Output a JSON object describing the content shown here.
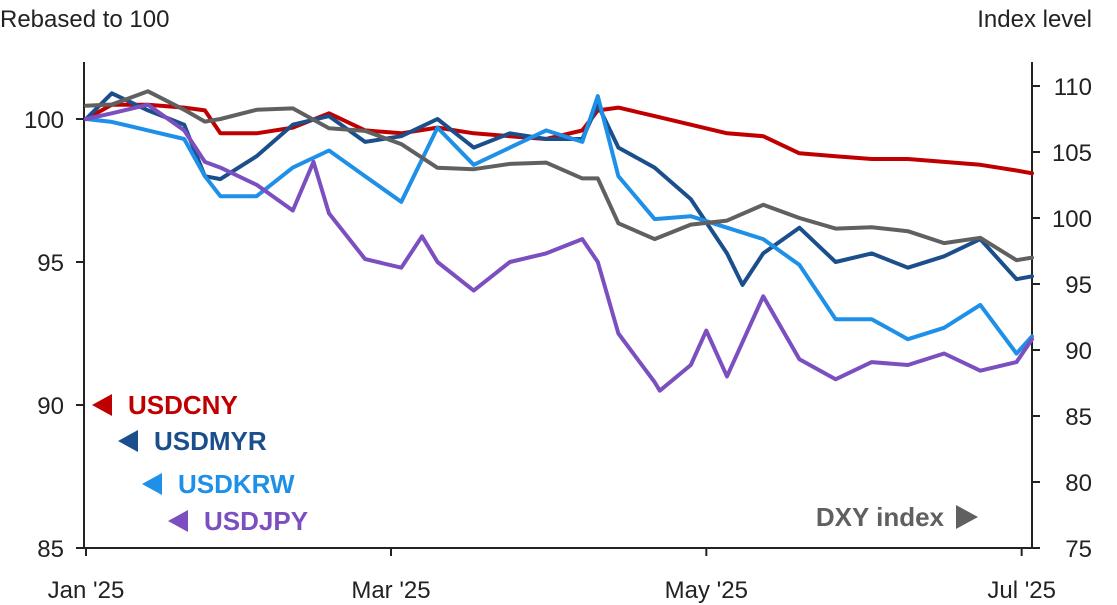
{
  "chart_data": {
    "type": "line",
    "left_axis_label": "Rebased to 100",
    "right_axis_label": "Index level",
    "left_ylim": [
      85,
      102
    ],
    "right_ylim": [
      75,
      112
    ],
    "left_ticks": [
      "100",
      "95",
      "90",
      "85"
    ],
    "left_tick_values": [
      100,
      95,
      90,
      85
    ],
    "right_ticks": [
      "110",
      "105",
      "100",
      "95",
      "90",
      "85",
      "80",
      "75"
    ],
    "right_tick_values": [
      110,
      105,
      100,
      95,
      90,
      85,
      80,
      75
    ],
    "x_ticks": [
      "Jan '25",
      "Mar '25",
      "May '25",
      "Jul '25"
    ],
    "x_tick_dates": [
      "2025-01-01",
      "2025-03-01",
      "2025-05-01",
      "2025-07-01"
    ],
    "x_range": [
      "2025-01-01",
      "2025-07-03"
    ],
    "series": [
      {
        "name": "USDCNY",
        "axis": "left",
        "color": "#C00000",
        "marker": "left-triangle",
        "points": [
          [
            "2025-01-01",
            100
          ],
          [
            "2025-01-06",
            100.5
          ],
          [
            "2025-01-13",
            100.5
          ],
          [
            "2025-01-20",
            100.4
          ],
          [
            "2025-01-24",
            100.3
          ],
          [
            "2025-01-27",
            99.5
          ],
          [
            "2025-02-03",
            99.5
          ],
          [
            "2025-02-10",
            99.7
          ],
          [
            "2025-02-17",
            100.2
          ],
          [
            "2025-02-24",
            99.6
          ],
          [
            "2025-03-03",
            99.5
          ],
          [
            "2025-03-10",
            99.7
          ],
          [
            "2025-03-17",
            99.5
          ],
          [
            "2025-03-24",
            99.4
          ],
          [
            "2025-03-31",
            99.3
          ],
          [
            "2025-04-07",
            99.6
          ],
          [
            "2025-04-10",
            100.3
          ],
          [
            "2025-04-14",
            100.4
          ],
          [
            "2025-04-21",
            100.1
          ],
          [
            "2025-04-28",
            99.8
          ],
          [
            "2025-05-05",
            99.5
          ],
          [
            "2025-05-12",
            99.4
          ],
          [
            "2025-05-19",
            98.8
          ],
          [
            "2025-05-26",
            98.7
          ],
          [
            "2025-06-02",
            98.6
          ],
          [
            "2025-06-09",
            98.6
          ],
          [
            "2025-06-16",
            98.5
          ],
          [
            "2025-06-23",
            98.4
          ],
          [
            "2025-06-30",
            98.2
          ],
          [
            "2025-07-03",
            98.1
          ]
        ]
      },
      {
        "name": "USDMYR",
        "axis": "left",
        "color": "#1B4F8C",
        "marker": "left-triangle",
        "points": [
          [
            "2025-01-01",
            100
          ],
          [
            "2025-01-06",
            100.9
          ],
          [
            "2025-01-13",
            100.3
          ],
          [
            "2025-01-20",
            99.8
          ],
          [
            "2025-01-24",
            98.0
          ],
          [
            "2025-01-27",
            97.9
          ],
          [
            "2025-02-03",
            98.7
          ],
          [
            "2025-02-10",
            99.8
          ],
          [
            "2025-02-17",
            100.1
          ],
          [
            "2025-02-24",
            99.2
          ],
          [
            "2025-03-03",
            99.4
          ],
          [
            "2025-03-10",
            100.0
          ],
          [
            "2025-03-17",
            99.0
          ],
          [
            "2025-03-24",
            99.5
          ],
          [
            "2025-03-31",
            99.3
          ],
          [
            "2025-04-07",
            99.3
          ],
          [
            "2025-04-10",
            100.5
          ],
          [
            "2025-04-14",
            99.0
          ],
          [
            "2025-04-21",
            98.3
          ],
          [
            "2025-04-28",
            97.2
          ],
          [
            "2025-05-05",
            95.3
          ],
          [
            "2025-05-08",
            94.2
          ],
          [
            "2025-05-12",
            95.3
          ],
          [
            "2025-05-19",
            96.2
          ],
          [
            "2025-05-26",
            95.0
          ],
          [
            "2025-06-02",
            95.3
          ],
          [
            "2025-06-09",
            94.8
          ],
          [
            "2025-06-16",
            95.2
          ],
          [
            "2025-06-23",
            95.8
          ],
          [
            "2025-06-30",
            94.4
          ],
          [
            "2025-07-03",
            94.5
          ]
        ]
      },
      {
        "name": "USDKRW",
        "axis": "left",
        "color": "#1E90E8",
        "marker": "left-triangle",
        "points": [
          [
            "2025-01-01",
            100
          ],
          [
            "2025-01-06",
            99.9
          ],
          [
            "2025-01-13",
            99.6
          ],
          [
            "2025-01-20",
            99.3
          ],
          [
            "2025-01-24",
            98.0
          ],
          [
            "2025-01-27",
            97.3
          ],
          [
            "2025-02-03",
            97.3
          ],
          [
            "2025-02-10",
            98.3
          ],
          [
            "2025-02-17",
            98.9
          ],
          [
            "2025-02-24",
            98.0
          ],
          [
            "2025-03-03",
            97.1
          ],
          [
            "2025-03-10",
            99.7
          ],
          [
            "2025-03-17",
            98.4
          ],
          [
            "2025-03-24",
            99.0
          ],
          [
            "2025-03-31",
            99.6
          ],
          [
            "2025-04-07",
            99.2
          ],
          [
            "2025-04-10",
            100.8
          ],
          [
            "2025-04-14",
            98.0
          ],
          [
            "2025-04-21",
            96.5
          ],
          [
            "2025-04-28",
            96.6
          ],
          [
            "2025-05-05",
            96.2
          ],
          [
            "2025-05-12",
            95.8
          ],
          [
            "2025-05-19",
            94.9
          ],
          [
            "2025-05-26",
            93.0
          ],
          [
            "2025-06-02",
            93.0
          ],
          [
            "2025-06-09",
            92.3
          ],
          [
            "2025-06-16",
            92.7
          ],
          [
            "2025-06-23",
            93.5
          ],
          [
            "2025-06-30",
            91.8
          ],
          [
            "2025-07-03",
            92.4
          ]
        ]
      },
      {
        "name": "USDJPY",
        "axis": "left",
        "color": "#7B4FBF",
        "marker": "left-triangle",
        "points": [
          [
            "2025-01-01",
            100
          ],
          [
            "2025-01-06",
            100.2
          ],
          [
            "2025-01-13",
            100.5
          ],
          [
            "2025-01-20",
            99.6
          ],
          [
            "2025-01-24",
            98.5
          ],
          [
            "2025-01-27",
            98.3
          ],
          [
            "2025-02-03",
            97.7
          ],
          [
            "2025-02-10",
            96.8
          ],
          [
            "2025-02-14",
            98.5
          ],
          [
            "2025-02-17",
            96.7
          ],
          [
            "2025-02-24",
            95.1
          ],
          [
            "2025-03-03",
            94.8
          ],
          [
            "2025-03-07",
            95.9
          ],
          [
            "2025-03-10",
            95.0
          ],
          [
            "2025-03-17",
            94.0
          ],
          [
            "2025-03-24",
            95.0
          ],
          [
            "2025-03-31",
            95.3
          ],
          [
            "2025-04-07",
            95.8
          ],
          [
            "2025-04-10",
            95.0
          ],
          [
            "2025-04-14",
            92.5
          ],
          [
            "2025-04-21",
            90.8
          ],
          [
            "2025-04-22",
            90.5
          ],
          [
            "2025-04-28",
            91.4
          ],
          [
            "2025-05-01",
            92.6
          ],
          [
            "2025-05-05",
            91.0
          ],
          [
            "2025-05-12",
            93.8
          ],
          [
            "2025-05-19",
            91.6
          ],
          [
            "2025-05-26",
            90.9
          ],
          [
            "2025-06-02",
            91.5
          ],
          [
            "2025-06-09",
            91.4
          ],
          [
            "2025-06-16",
            91.8
          ],
          [
            "2025-06-23",
            91.2
          ],
          [
            "2025-06-30",
            91.5
          ],
          [
            "2025-07-03",
            92.3
          ]
        ]
      },
      {
        "name": "DXY index",
        "axis": "right",
        "color": "#606060",
        "marker": "right-triangle",
        "points": [
          [
            "2025-01-01",
            108.5
          ],
          [
            "2025-01-06",
            108.6
          ],
          [
            "2025-01-13",
            109.6
          ],
          [
            "2025-01-20",
            108.2
          ],
          [
            "2025-01-24",
            107.3
          ],
          [
            "2025-01-27",
            107.5
          ],
          [
            "2025-02-03",
            108.2
          ],
          [
            "2025-02-10",
            108.3
          ],
          [
            "2025-02-17",
            106.8
          ],
          [
            "2025-02-24",
            106.6
          ],
          [
            "2025-03-03",
            105.6
          ],
          [
            "2025-03-10",
            103.8
          ],
          [
            "2025-03-17",
            103.7
          ],
          [
            "2025-03-24",
            104.1
          ],
          [
            "2025-03-31",
            104.2
          ],
          [
            "2025-04-07",
            103.0
          ],
          [
            "2025-04-10",
            103.0
          ],
          [
            "2025-04-14",
            99.6
          ],
          [
            "2025-04-21",
            98.4
          ],
          [
            "2025-04-28",
            99.5
          ],
          [
            "2025-05-05",
            99.8
          ],
          [
            "2025-05-12",
            101.0
          ],
          [
            "2025-05-19",
            100.0
          ],
          [
            "2025-05-26",
            99.2
          ],
          [
            "2025-06-02",
            99.3
          ],
          [
            "2025-06-09",
            99.0
          ],
          [
            "2025-06-16",
            98.1
          ],
          [
            "2025-06-23",
            98.5
          ],
          [
            "2025-06-30",
            96.8
          ],
          [
            "2025-07-03",
            97.0
          ]
        ]
      }
    ],
    "legend_left": [
      "USDCNY",
      "USDMYR",
      "USDKRW",
      "USDJPY"
    ],
    "legend_right": [
      "DXY index"
    ]
  }
}
